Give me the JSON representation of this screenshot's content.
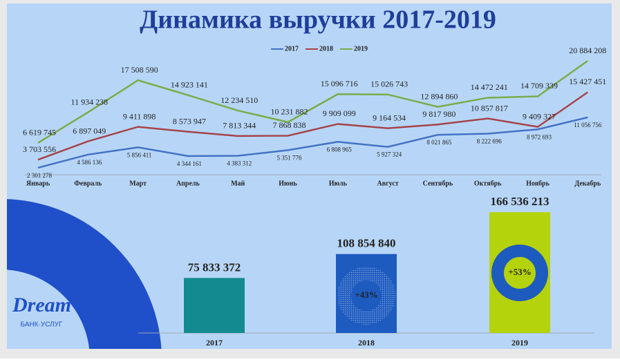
{
  "logo": {
    "name": "Dream",
    "subtitle": "БАНК·УСЛУГ"
  },
  "chart_data": [
    {
      "type": "line",
      "title": "Динамика выручки 2017-2019",
      "categories": [
        "Январь",
        "Февраль",
        "Март",
        "Апрель",
        "Май",
        "Июнь",
        "Июль",
        "Август",
        "Сентябрь",
        "Октябрь",
        "Ноябрь",
        "Декабрь"
      ],
      "series": [
        {
          "name": "2017",
          "color": "#4472c4",
          "values": [
            2301278,
            4586136,
            5856411,
            4344161,
            4383312,
            5351776,
            6808965,
            5927324,
            8021865,
            8222696,
            8972693,
            11056756
          ],
          "value_labels": [
            "2 301 278",
            "4 586 136",
            "5 856 411",
            "4 344 161",
            "4 383 312",
            "5 351 776",
            "6 808 965",
            "5 927 324",
            "8 021 865",
            "8 222 696",
            "8 972 693",
            "11 056 756"
          ]
        },
        {
          "name": "2018",
          "color": "#a5434a",
          "values": [
            3703556,
            6897049,
            9411898,
            8573947,
            7813344,
            7868838,
            9909099,
            9164534,
            9817980,
            10857817,
            9409327,
            15427451
          ],
          "value_labels": [
            "3 703 556",
            "6 897 049",
            "9 411 898",
            "8 573 947",
            "7 813 344",
            "7 868 838",
            "9 909 099",
            "9 164 534",
            "9 817 980",
            "10 857 817",
            "9 409 327",
            "15 427 451"
          ]
        },
        {
          "name": "2019",
          "color": "#7aab4a",
          "values": [
            6619745,
            11934238,
            17508590,
            14923141,
            12234510,
            10231882,
            15096716,
            15026743,
            12894860,
            14472241,
            14709339,
            20884208
          ],
          "value_labels": [
            "6 619 745",
            "11 934 238",
            "17 508 590",
            "14 923 141",
            "12 234 510",
            "10 231 882",
            "15 096 716",
            "15 026 743",
            "12 894 860",
            "14 472 241",
            "14 709 339",
            "20 884 208"
          ]
        }
      ]
    },
    {
      "type": "bar",
      "categories": [
        "2017",
        "2018",
        "2019"
      ],
      "values": [
        75833372,
        108854840,
        166536213
      ],
      "value_labels": [
        "75 833 372",
        "108 854 840",
        "166 536 213"
      ],
      "colors": [
        "#138a8f",
        "#1e5bbf",
        "#b5d30c"
      ],
      "annotations": [
        "+43%",
        "+53%"
      ]
    }
  ]
}
